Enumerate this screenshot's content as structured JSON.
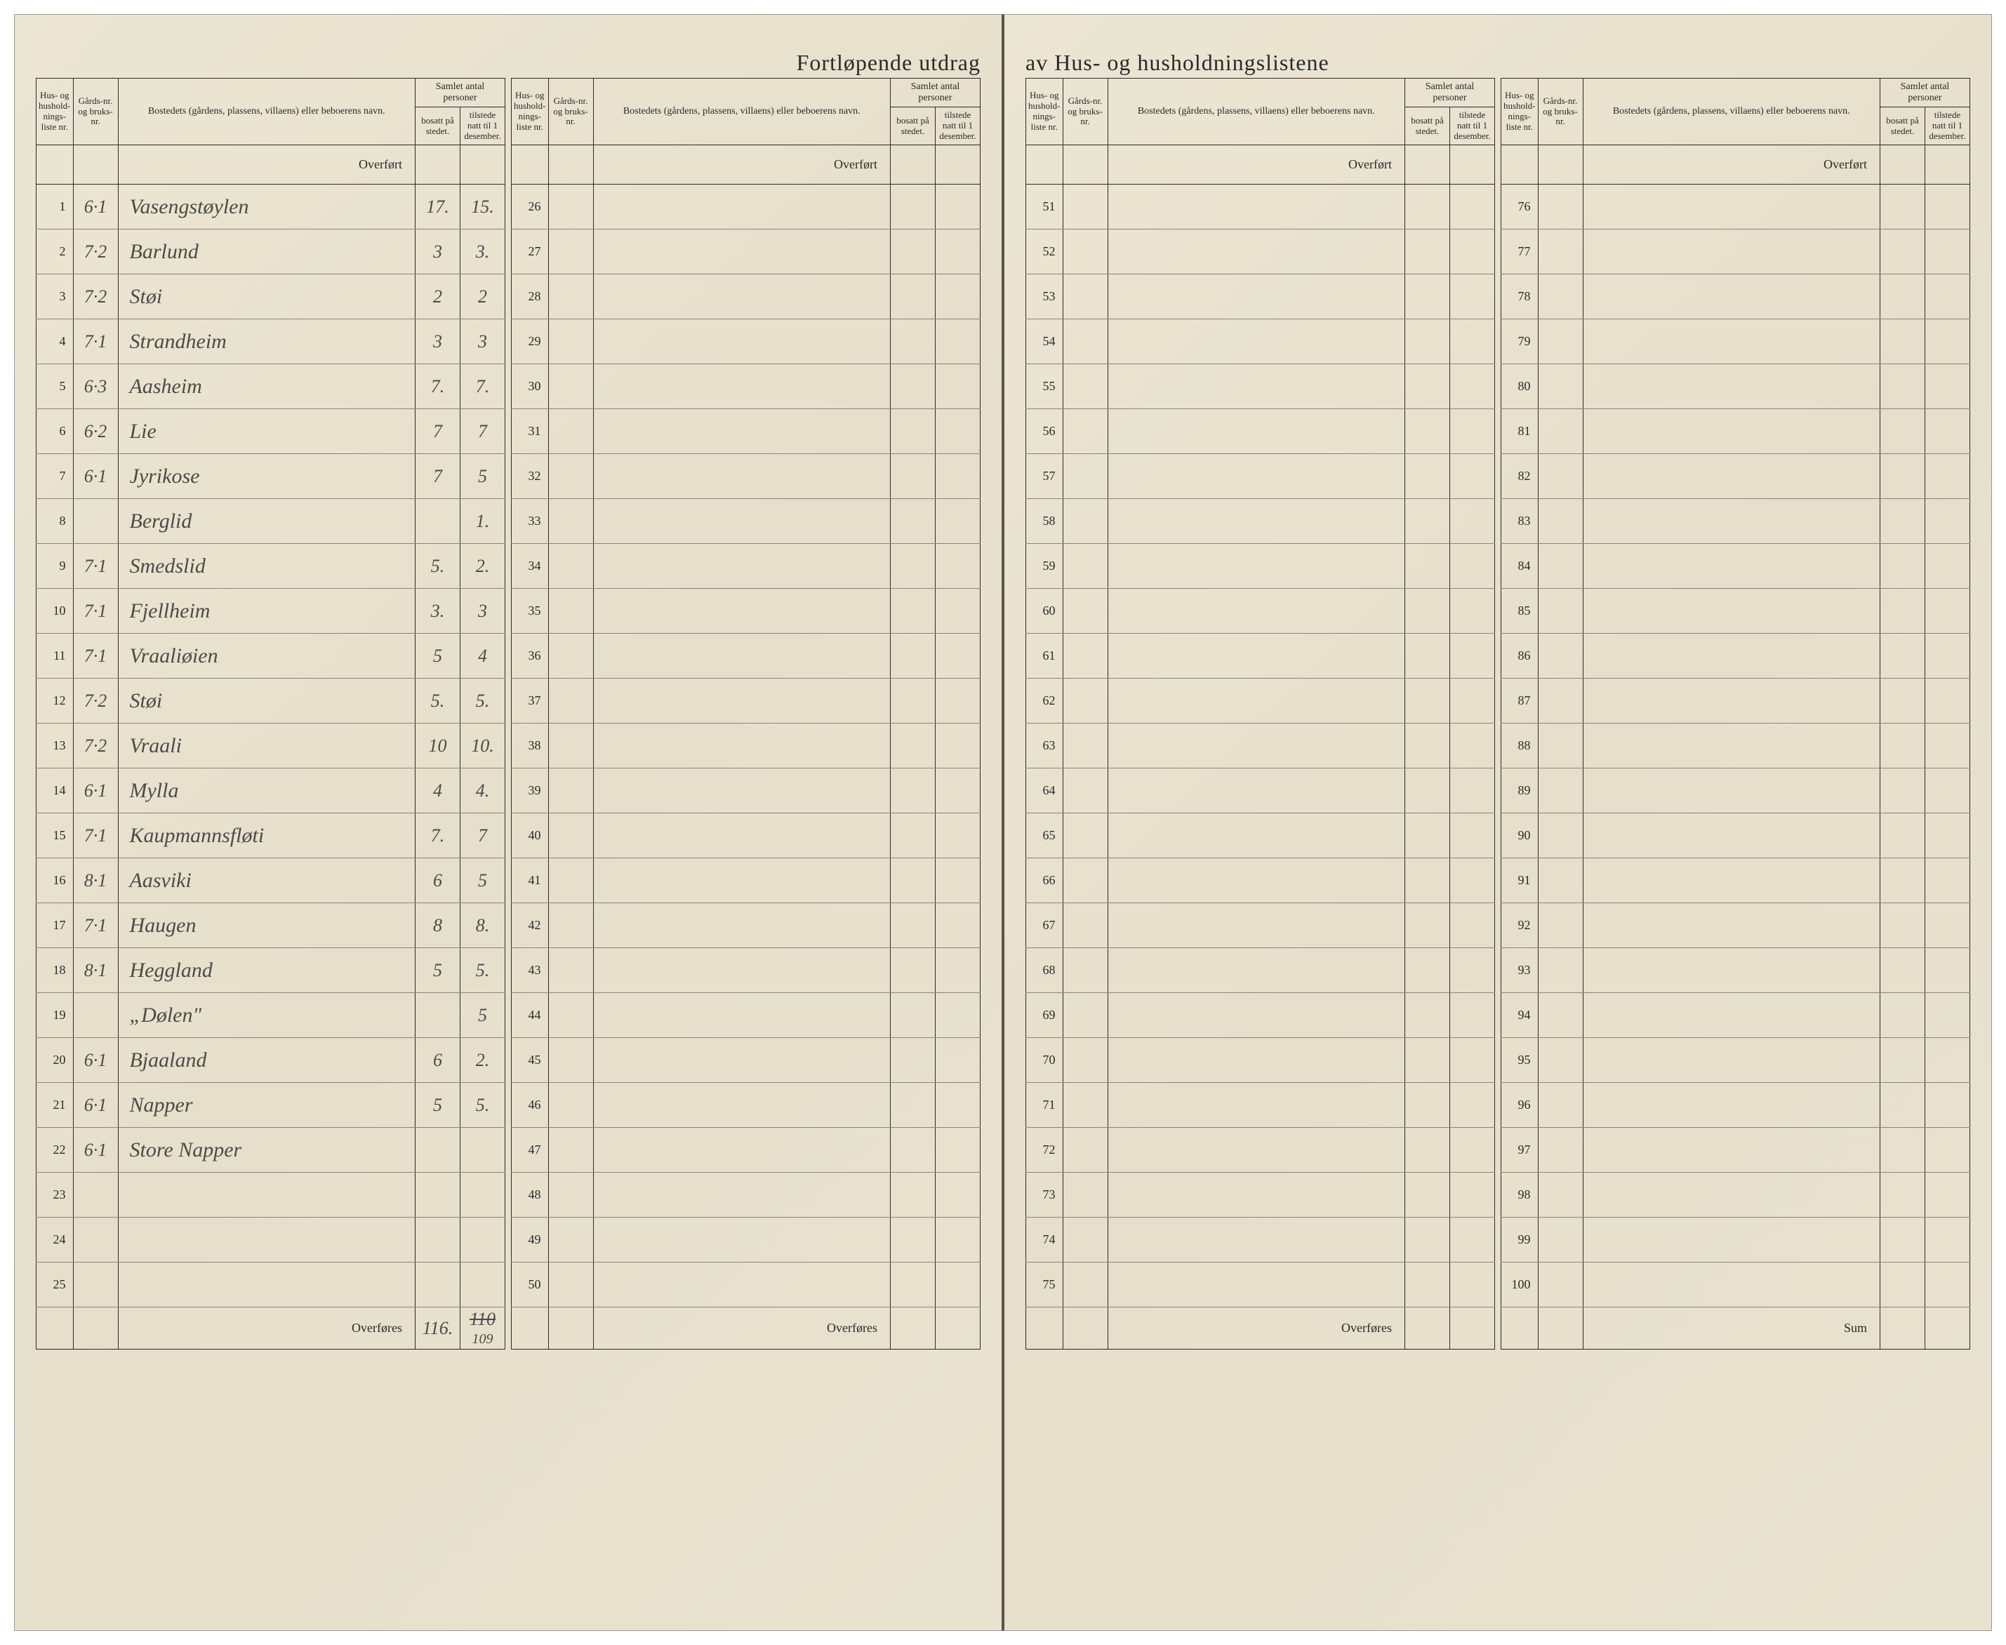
{
  "title_left": "Fortløpende utdrag",
  "title_right": "av Hus- og husholdningslistene",
  "headers": {
    "hus": "Hus- og hushold-nings-liste nr.",
    "gards": "Gårds-nr. og bruks-nr.",
    "bosted": "Bostedets (gårdens, plassens, villaens) eller beboerens navn.",
    "samlet": "Samlet antal personer",
    "bosatt": "bosatt på stedet.",
    "tilstede": "tilstede natt til 1 desember."
  },
  "overfort_label": "Overført",
  "overfores_label": "Overføres",
  "sum_label": "Sum",
  "block1": {
    "start": 1,
    "end": 25,
    "rows": [
      {
        "n": 1,
        "g": "6·1",
        "b": "Vasengstøylen",
        "bo": "17.",
        "ti": "15."
      },
      {
        "n": 2,
        "g": "7·2",
        "b": "Barlund",
        "bo": "3",
        "ti": "3."
      },
      {
        "n": 3,
        "g": "7·2",
        "b": "Støi",
        "bo": "2",
        "ti": "2"
      },
      {
        "n": 4,
        "g": "7·1",
        "b": "Strandheim",
        "bo": "3",
        "ti": "3"
      },
      {
        "n": 5,
        "g": "6·3",
        "b": "Aasheim",
        "bo": "7.",
        "ti": "7."
      },
      {
        "n": 6,
        "g": "6·2",
        "b": "Lie",
        "bo": "7",
        "ti": "7"
      },
      {
        "n": 7,
        "g": "6·1",
        "b": "Jyrikose",
        "bo": "7",
        "ti": "5"
      },
      {
        "n": 8,
        "g": "",
        "b": "Berglid",
        "bo": "",
        "ti": "1."
      },
      {
        "n": 9,
        "g": "7·1",
        "b": "Smedslid",
        "bo": "5.",
        "ti": "2."
      },
      {
        "n": 10,
        "g": "7·1",
        "b": "Fjellheim",
        "bo": "3.",
        "ti": "3"
      },
      {
        "n": 11,
        "g": "7·1",
        "b": "Vraaliøien",
        "bo": "5",
        "ti": "4"
      },
      {
        "n": 12,
        "g": "7·2",
        "b": "Støi",
        "bo": "5.",
        "ti": "5."
      },
      {
        "n": 13,
        "g": "7·2",
        "b": "Vraali",
        "bo": "10",
        "ti": "10."
      },
      {
        "n": 14,
        "g": "6·1",
        "b": "Mylla",
        "bo": "4",
        "ti": "4."
      },
      {
        "n": 15,
        "g": "7·1",
        "b": "Kaupmannsfløti",
        "bo": "7.",
        "ti": "7"
      },
      {
        "n": 16,
        "g": "8·1",
        "b": "Aasviki",
        "bo": "6",
        "ti": "5"
      },
      {
        "n": 17,
        "g": "7·1",
        "b": "Haugen",
        "bo": "8",
        "ti": "8."
      },
      {
        "n": 18,
        "g": "8·1",
        "b": "Heggland",
        "bo": "5",
        "ti": "5."
      },
      {
        "n": 19,
        "g": "",
        "b": "„Dølen\"",
        "bo": "",
        "ti": "5"
      },
      {
        "n": 20,
        "g": "6·1",
        "b": "Bjaaland",
        "bo": "6",
        "ti": "2."
      },
      {
        "n": 21,
        "g": "6·1",
        "b": "Napper",
        "bo": "5",
        "ti": "5."
      },
      {
        "n": 22,
        "g": "6·1",
        "b": "Store Napper",
        "bo": "",
        "ti": ""
      },
      {
        "n": 23,
        "g": "",
        "b": "",
        "bo": "",
        "ti": ""
      },
      {
        "n": 24,
        "g": "",
        "b": "",
        "bo": "",
        "ti": ""
      },
      {
        "n": 25,
        "g": "",
        "b": "",
        "bo": "",
        "ti": ""
      }
    ],
    "footer_bo": "116.",
    "footer_ti_strike": "110",
    "footer_ti_sub": "109"
  },
  "block2": {
    "start": 26,
    "end": 50
  },
  "block3": {
    "start": 51,
    "end": 75
  },
  "block4": {
    "start": 76,
    "end": 100
  }
}
